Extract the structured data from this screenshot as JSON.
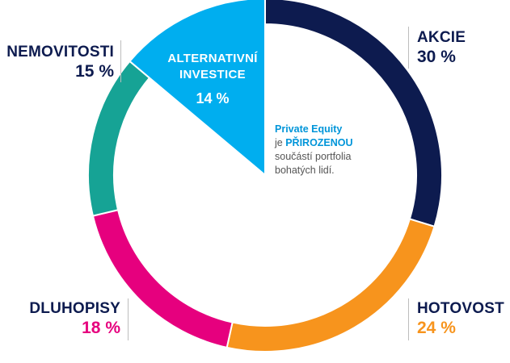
{
  "chart_data": {
    "type": "pie",
    "title": "",
    "slices": [
      {
        "label": "AKCIE",
        "value": 30,
        "value_label": "30 %",
        "color": "#0d1b4f",
        "label_color": "#0d1b4f"
      },
      {
        "label": "HOTOVOST",
        "value": 24,
        "value_label": "24 %",
        "color": "#f7941d",
        "label_color": "#0d1b4f",
        "value_color": "#f7941d"
      },
      {
        "label": "DLUHOPISY",
        "value": 18,
        "value_label": "18 %",
        "color": "#e6007e",
        "label_color": "#0d1b4f",
        "value_color": "#e6007e"
      },
      {
        "label": "NEMOVITOSTI",
        "value": 15,
        "value_label": "15 %",
        "color": "#16a395",
        "label_color": "#0d1b4f",
        "value_color": "#0d1b4f"
      },
      {
        "label": "ALTERNATIVNÍ INVESTICE",
        "value": 14,
        "value_label": "14 %",
        "color": "#00aeef",
        "label_color": "#ffffff",
        "value_color": "#ffffff",
        "highlighted": true
      }
    ],
    "start_angle_deg": 0,
    "direction": "clockwise",
    "legend": "none"
  },
  "labels": {
    "akcie": {
      "name": "AKCIE",
      "pct": "30 %"
    },
    "hotovost": {
      "name": "HOTOVOST",
      "pct": "24 %"
    },
    "dluhopisy": {
      "name": "DLUHOPISY",
      "pct": "18 %"
    },
    "nemovitosti": {
      "name": "NEMOVITOSTI",
      "pct": "15 %"
    },
    "alternativni": {
      "line1": "ALTERNATIVNÍ",
      "line2": "INVESTICE",
      "pct": "14 %"
    }
  },
  "note": {
    "line1": "Private Equity",
    "line2_prefix": "je ",
    "line2_highlight": "PŘIROZENOU",
    "line3": "součástí portfolia",
    "line4": "bohatých lidí."
  }
}
